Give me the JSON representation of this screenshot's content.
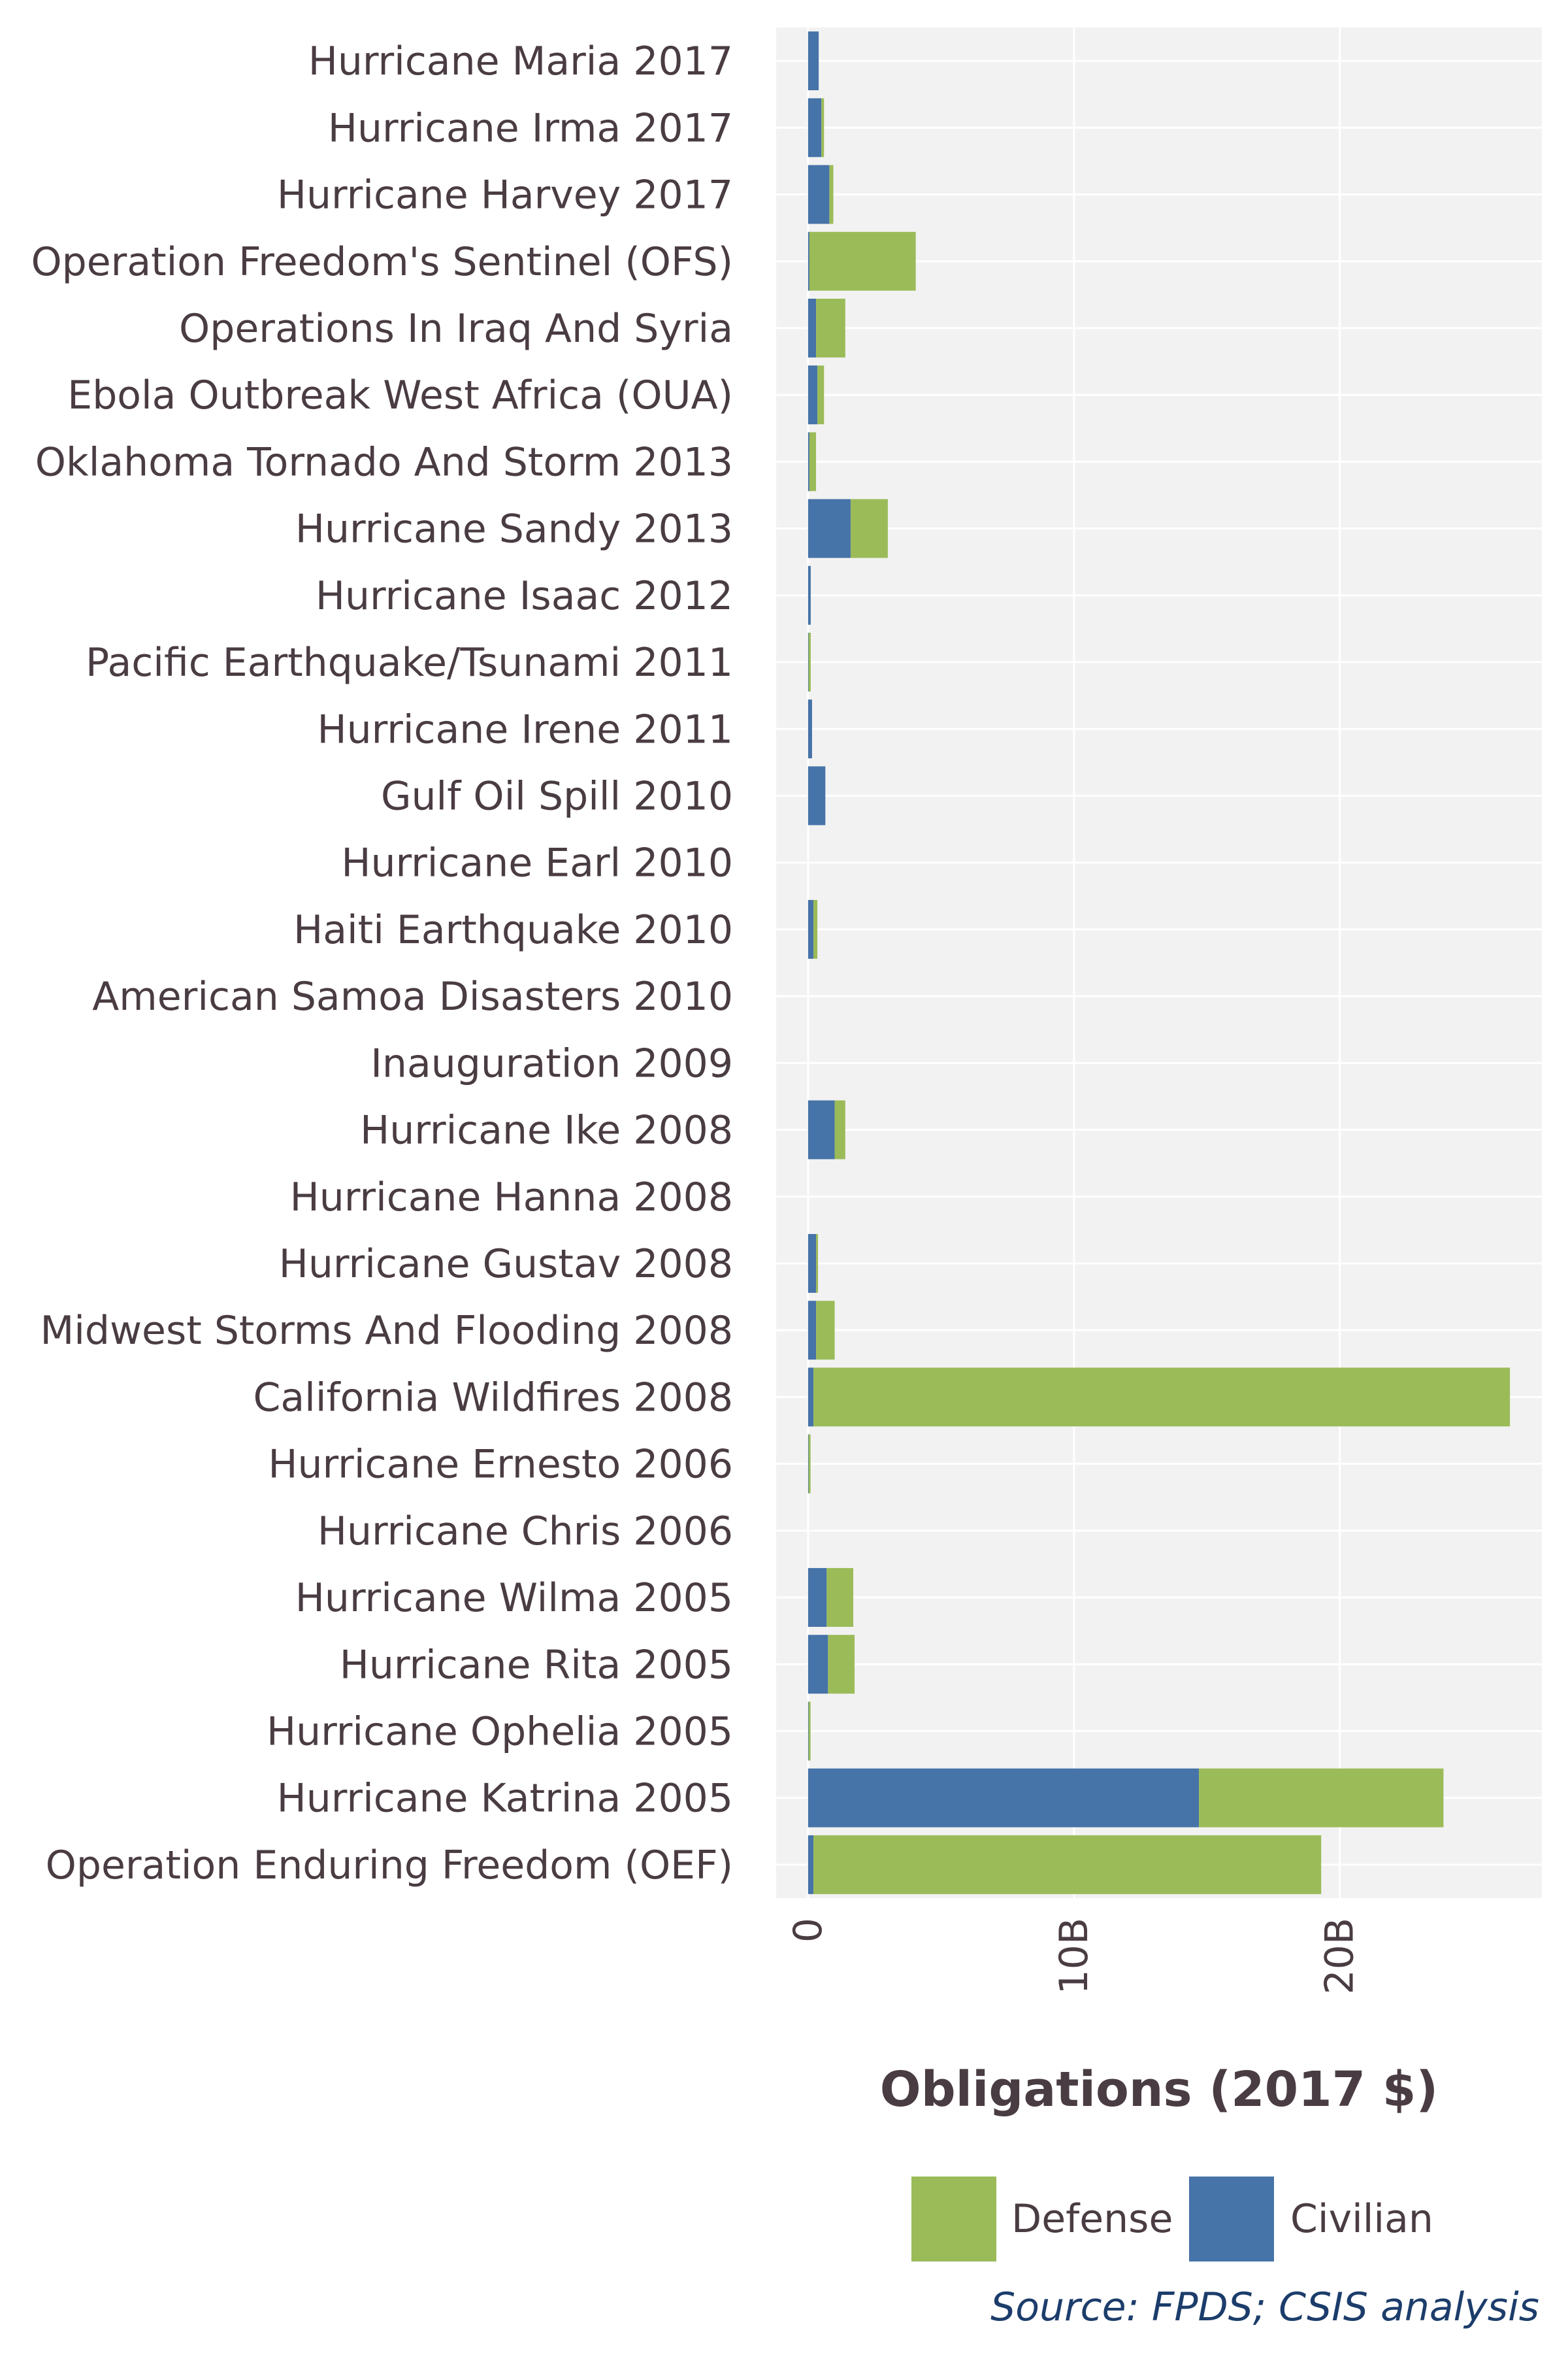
{
  "chart_data": {
    "type": "bar",
    "orientation": "horizontal",
    "stacked": true,
    "categories": [
      "Hurricane Maria 2017",
      "Hurricane Irma 2017",
      "Hurricane Harvey 2017",
      "Operation Freedom's Sentinel (OFS)",
      "Operations In Iraq And Syria",
      "Ebola Outbreak West Africa (OUA)",
      "Oklahoma Tornado And Storm 2013",
      "Hurricane Sandy 2013",
      "Hurricane Isaac 2012",
      "Pacific Earthquake/Tsunami 2011",
      "Hurricane Irene 2011",
      "Gulf Oil Spill 2010",
      "Hurricane Earl 2010",
      "Haiti Earthquake 2010",
      "American Samoa Disasters 2010",
      "Inauguration 2009",
      "Hurricane Ike 2008",
      "Hurricane Hanna 2008",
      "Hurricane Gustav 2008",
      "Midwest Storms And Flooding 2008",
      "California Wildfires 2008",
      "Hurricane Ernesto 2006",
      "Hurricane Chris 2006",
      "Hurricane Wilma 2005",
      "Hurricane Rita 2005",
      "Hurricane Ophelia 2005",
      "Hurricane Katrina 2005",
      "Operation Enduring Freedom (OEF)"
    ],
    "series": [
      {
        "name": "Civilian",
        "color": "#4673a8",
        "values": [
          0.4,
          0.5,
          0.8,
          0.05,
          0.3,
          0.35,
          0.05,
          1.6,
          0.1,
          0.02,
          0.15,
          0.65,
          0.0,
          0.2,
          0.0,
          0.0,
          1.0,
          0.0,
          0.3,
          0.3,
          0.2,
          0.02,
          0.0,
          0.7,
          0.75,
          0.02,
          14.7,
          0.2
        ]
      },
      {
        "name": "Defense",
        "color": "#9bbb59",
        "values": [
          0.0,
          0.1,
          0.15,
          4.0,
          1.1,
          0.25,
          0.25,
          1.4,
          0.0,
          0.08,
          0.0,
          0.0,
          0.0,
          0.15,
          0.0,
          0.0,
          0.4,
          0.0,
          0.05,
          0.7,
          26.2,
          0.05,
          0.0,
          1.0,
          1.0,
          0.05,
          9.2,
          19.1
        ]
      }
    ],
    "x_ticks": [
      "0",
      "10B",
      "20B"
    ],
    "x_tick_values": [
      0,
      10,
      20
    ],
    "xlim": [
      -1.2,
      27.6
    ],
    "x_unit": "billions",
    "xlabel": "Obligations (2017 $)",
    "grid": true,
    "legend": {
      "position": "bottom",
      "entries": [
        {
          "label": "Defense",
          "color": "#9bbb59"
        },
        {
          "label": "Civilian",
          "color": "#4673a8"
        }
      ]
    },
    "source": "Source: FPDS; CSIS analysis"
  }
}
